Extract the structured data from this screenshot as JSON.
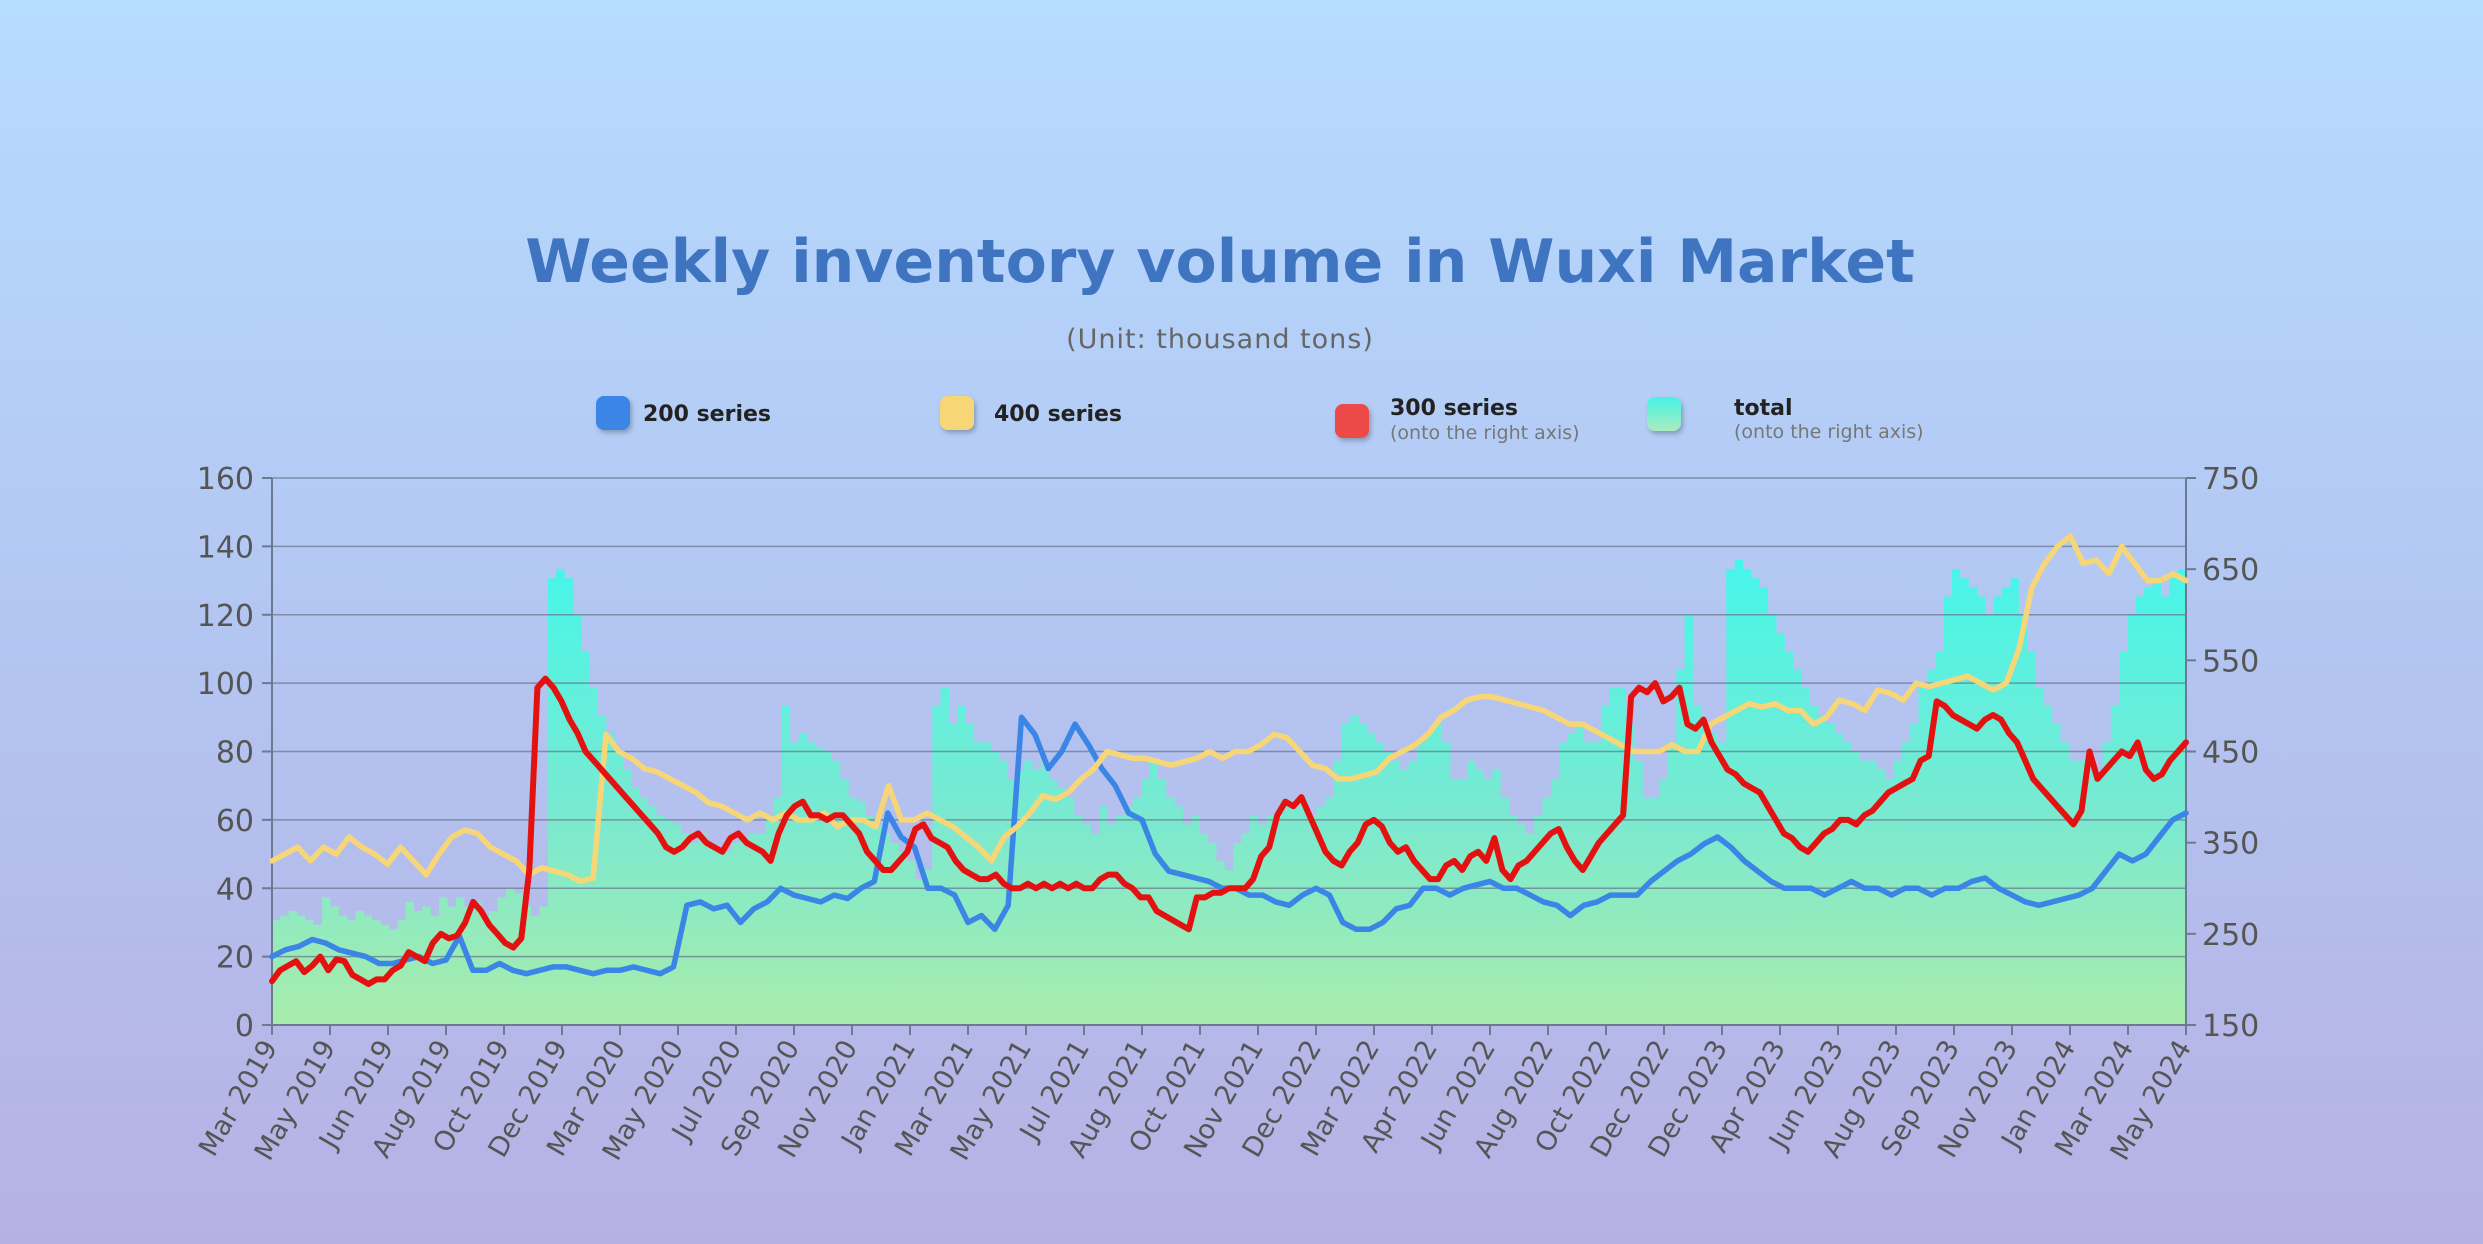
{
  "chart_data": {
    "type": "line",
    "title": "Weekly inventory volume in Wuxi Market",
    "subtitle": "(Unit: thousand tons)",
    "x_tick_labels": [
      "Mar 2019",
      "May 2019",
      "Jun 2019",
      "Aug 2019",
      "Oct 2019",
      "Dec 2019",
      "Mar 2020",
      "May 2020",
      "Jul 2020",
      "Sep 2020",
      "Nov 2020",
      "Jan 2021",
      "Mar 2021",
      "May 2021",
      "Jul 2021",
      "Aug 2021",
      "Oct 2021",
      "Nov 2021",
      "Dec 2022",
      "Mar 2022",
      "Apr 2022",
      "Jun 2022",
      "Aug 2022",
      "Oct 2022",
      "Dec 2022",
      "Dec 2023",
      "Apr 2023",
      "Jun 2023",
      "Aug 2023",
      "Sep 2023",
      "Nov 2023",
      "Jan 2024",
      "Mar 2024",
      "May 2024"
    ],
    "y_left": {
      "ticks": [
        0,
        20,
        40,
        60,
        80,
        100,
        120,
        140,
        160
      ],
      "ylim": [
        0,
        160
      ]
    },
    "y_right": {
      "ticks": [
        150,
        250,
        350,
        450,
        550,
        650,
        750
      ],
      "ylim": [
        150,
        750
      ]
    },
    "grid": true,
    "legend_position": "top",
    "series": [
      {
        "name": "200 series",
        "axis": "left",
        "color": "#3a85e6",
        "type": "line",
        "values": [
          20,
          22,
          23,
          25,
          24,
          22,
          21,
          20,
          18,
          18,
          19,
          20,
          18,
          19,
          26,
          16,
          16,
          18,
          16,
          15,
          16,
          17,
          17,
          16,
          15,
          16,
          16,
          17,
          16,
          15,
          17,
          35,
          36,
          34,
          35,
          30,
          34,
          36,
          40,
          38,
          37,
          36,
          38,
          37,
          40,
          42,
          62,
          55,
          52,
          40,
          40,
          38,
          30,
          32,
          28,
          35,
          90,
          85,
          75,
          80,
          88,
          82,
          75,
          70,
          62,
          60,
          50,
          45,
          44,
          43,
          42,
          40,
          40,
          38,
          38,
          36,
          35,
          38,
          40,
          38,
          30,
          28,
          28,
          30,
          34,
          35,
          40,
          40,
          38,
          40,
          41,
          42,
          40,
          40,
          38,
          36,
          35,
          32,
          35,
          36,
          38,
          38,
          38,
          42,
          45,
          48,
          50,
          53,
          55,
          52,
          48,
          45,
          42,
          40,
          40,
          40,
          38,
          40,
          42,
          40,
          40,
          38,
          40,
          40,
          38,
          40,
          40,
          42,
          43,
          40,
          38,
          36,
          35,
          36,
          37,
          38,
          40,
          45,
          50,
          48,
          50,
          55,
          60,
          62
        ]
      },
      {
        "name": "400 series",
        "axis": "left",
        "color": "#f7d678",
        "type": "line",
        "values": [
          48,
          50,
          52,
          48,
          52,
          50,
          55,
          52,
          50,
          47,
          52,
          48,
          44,
          50,
          55,
          57,
          56,
          52,
          50,
          48,
          44,
          46,
          45,
          44,
          42,
          43,
          85,
          80,
          78,
          75,
          74,
          72,
          70,
          68,
          65,
          64,
          62,
          60,
          62,
          60,
          62,
          60,
          60,
          62,
          58,
          60,
          60,
          58,
          70,
          60,
          60,
          62,
          60,
          58,
          55,
          52,
          48,
          55,
          58,
          62,
          67,
          66,
          68,
          72,
          75,
          80,
          79,
          78,
          78,
          77,
          76,
          77,
          78,
          80,
          78,
          80,
          80,
          82,
          85,
          84,
          80,
          76,
          75,
          72,
          72,
          73,
          74,
          78,
          80,
          82,
          85,
          90,
          92,
          95,
          96,
          96,
          95,
          94,
          93,
          92,
          90,
          88,
          88,
          86,
          84,
          82,
          80,
          80,
          80,
          82,
          80,
          80,
          88,
          90,
          92,
          94,
          93,
          94,
          92,
          92,
          88,
          90,
          95,
          94,
          92,
          98,
          97,
          95,
          100,
          99,
          100,
          101,
          102,
          100,
          98,
          100,
          110,
          128,
          135,
          140,
          143,
          135,
          136,
          132,
          140,
          135,
          130,
          130,
          132,
          130
        ]
      },
      {
        "name": "300 series",
        "axis": "right",
        "color": "#e41111",
        "type": "line",
        "values": [
          198,
          210,
          215,
          220,
          208,
          215,
          225,
          210,
          222,
          220,
          205,
          200,
          195,
          200,
          200,
          210,
          215,
          230,
          225,
          220,
          240,
          250,
          245,
          248,
          262,
          285,
          275,
          260,
          250,
          240,
          235,
          245,
          320,
          520,
          530,
          520,
          505,
          485,
          470,
          450,
          440,
          430,
          420,
          410,
          400,
          390,
          380,
          370,
          360,
          345,
          340,
          345,
          355,
          360,
          350,
          345,
          340,
          355,
          360,
          350,
          345,
          340,
          330,
          360,
          380,
          390,
          395,
          380,
          380,
          375,
          380,
          380,
          370,
          360,
          340,
          330,
          320,
          320,
          330,
          340,
          365,
          370,
          355,
          350,
          345,
          330,
          320,
          315,
          310,
          310,
          315,
          305,
          300,
          300,
          305,
          300,
          305,
          300,
          305,
          300,
          305,
          300,
          300,
          310,
          315,
          315,
          305,
          300,
          290,
          290,
          275,
          270,
          265,
          260,
          255,
          290,
          290,
          295,
          295,
          300,
          300,
          300,
          310,
          335,
          345,
          380,
          395,
          390,
          400,
          380,
          360,
          340,
          330,
          325,
          340,
          350,
          370,
          375,
          368,
          350,
          340,
          345,
          330,
          320,
          310,
          310,
          325,
          330,
          320,
          335,
          340,
          330,
          355,
          320,
          310,
          325,
          330,
          340,
          350,
          360,
          365,
          345,
          330,
          320,
          335,
          350,
          360,
          370,
          380,
          510,
          520,
          515,
          525,
          505,
          510,
          520,
          480,
          475,
          485,
          460,
          445,
          430,
          425,
          415,
          410,
          405,
          390,
          375,
          360,
          355,
          345,
          340,
          350,
          360,
          365,
          375,
          375,
          370,
          380,
          385,
          395,
          405,
          410,
          415,
          420,
          440,
          445,
          505,
          500,
          490,
          485,
          480,
          475,
          485,
          490,
          485,
          470,
          460,
          440,
          420,
          410,
          400,
          390,
          380,
          370,
          385,
          450,
          420,
          430,
          440,
          450,
          445,
          460,
          430,
          420,
          425,
          440,
          450,
          460
        ]
      },
      {
        "name": "total",
        "axis": "right",
        "color": "#46f2e4",
        "type": "area",
        "values": [
          265,
          270,
          275,
          270,
          265,
          260,
          290,
          280,
          270,
          265,
          275,
          270,
          265,
          260,
          255,
          265,
          285,
          275,
          280,
          270,
          290,
          280,
          290,
          280,
          285,
          270,
          275,
          290,
          300,
          295,
          280,
          270,
          280,
          640,
          650,
          640,
          600,
          560,
          520,
          490,
          470,
          450,
          430,
          410,
          400,
          390,
          380,
          375,
          370,
          360,
          350,
          360,
          350,
          340,
          340,
          350,
          355,
          360,
          360,
          380,
          400,
          500,
          460,
          470,
          460,
          455,
          450,
          440,
          420,
          400,
          395,
          380,
          370,
          360,
          350,
          340,
          330,
          310,
          320,
          500,
          520,
          480,
          500,
          480,
          460,
          460,
          450,
          440,
          420,
          430,
          440,
          430,
          440,
          420,
          410,
          400,
          380,
          370,
          360,
          390,
          370,
          380,
          390,
          400,
          420,
          440,
          420,
          400,
          390,
          370,
          380,
          360,
          350,
          330,
          320,
          350,
          360,
          380,
          370,
          380,
          385,
          390,
          390,
          400,
          380,
          390,
          400,
          440,
          480,
          490,
          480,
          470,
          460,
          450,
          440,
          430,
          440,
          460,
          470,
          480,
          460,
          420,
          420,
          440,
          430,
          420,
          430,
          400,
          380,
          370,
          360,
          380,
          400,
          420,
          460,
          470,
          480,
          460,
          460,
          500,
          520,
          520,
          480,
          440,
          400,
          400,
          420,
          460,
          540,
          600,
          500,
          480,
          470,
          460,
          650,
          660,
          650,
          640,
          630,
          600,
          580,
          560,
          540,
          520,
          500,
          490,
          480,
          470,
          460,
          450,
          440,
          440,
          430,
          420,
          440,
          460,
          480,
          520,
          540,
          560,
          620,
          650,
          640,
          630,
          620,
          600,
          620,
          630,
          640,
          600,
          560,
          520,
          500,
          480,
          460,
          440,
          440,
          430,
          420,
          460,
          500,
          560,
          600,
          620,
          630,
          640,
          620,
          640,
          650,
          655
        ]
      }
    ],
    "legend": [
      {
        "name": "200 series",
        "note": ""
      },
      {
        "name": "400 series",
        "note": ""
      },
      {
        "name": "300 series",
        "note": "(onto the right axis)"
      },
      {
        "name": "total",
        "note": "(onto the right axis)"
      }
    ]
  }
}
